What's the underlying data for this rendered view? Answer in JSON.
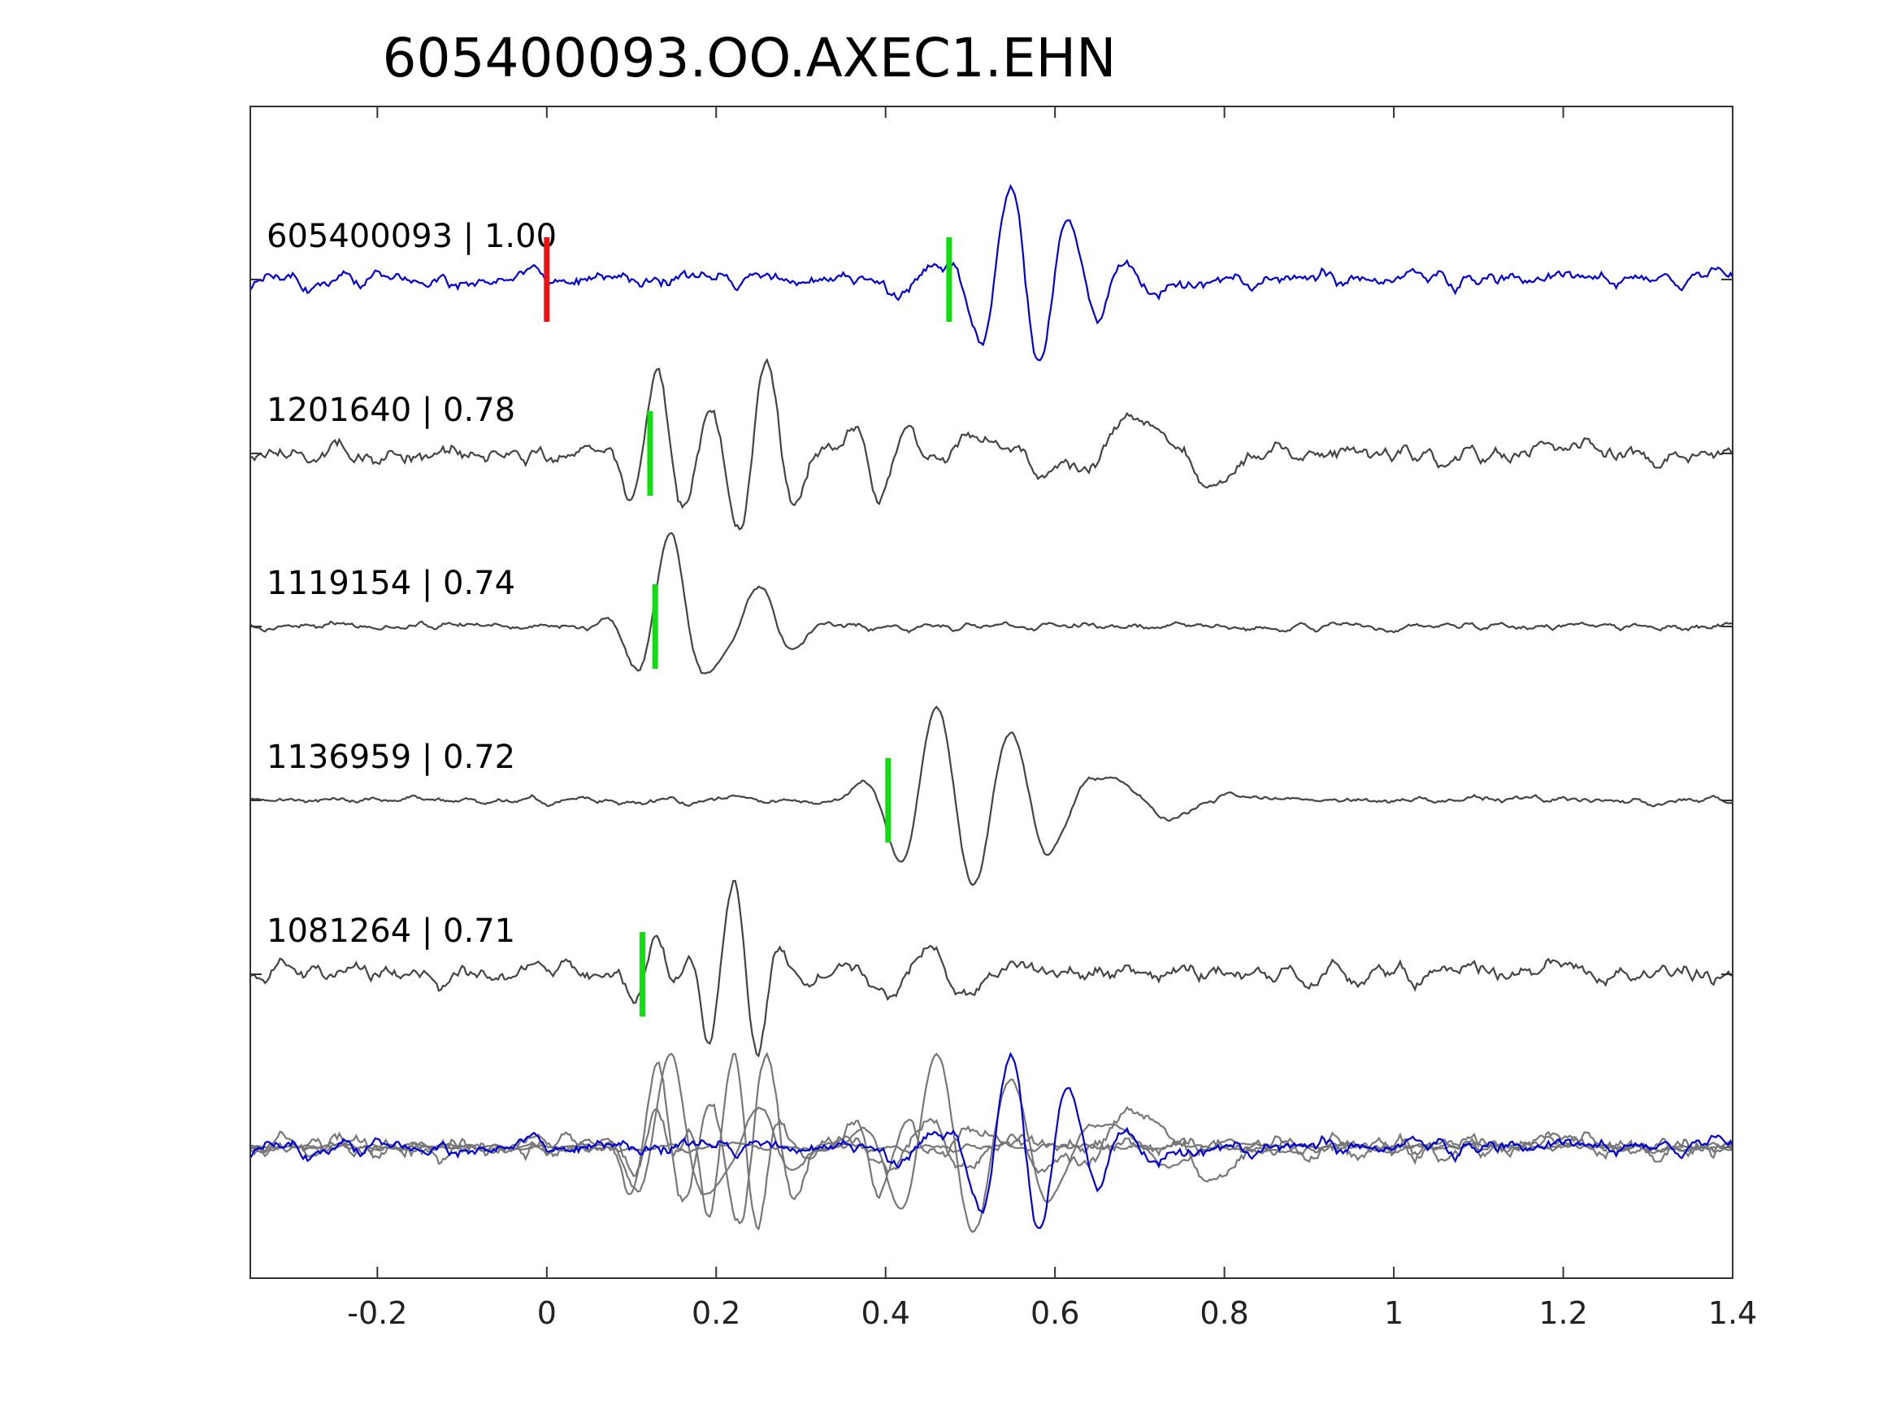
{
  "chart_data": {
    "type": "line",
    "title": "605400093.OO.AXEC1.EHN",
    "xlabel": "",
    "ylabel": "",
    "xlim": [
      -0.35,
      1.4
    ],
    "xticks": [
      -0.2,
      0,
      0.2,
      0.4,
      0.6,
      0.8,
      1,
      1.2,
      1.4
    ],
    "xtick_labels": [
      "-0.2",
      "0",
      "0.2",
      "0.4",
      "0.6",
      "0.8",
      "1",
      "1.2",
      "1.4"
    ],
    "grid": false,
    "traces": [
      {
        "label": "605400093 | 1.00",
        "color": "#0000dd",
        "pick_red": 0.0,
        "pick_green": 0.475,
        "noise": 0.12,
        "wavelets": [
          [
            0.55,
            1.0,
            0.075,
            0.048
          ],
          [
            0.61,
            0.45,
            0.075,
            0.06
          ],
          [
            0.45,
            0.25,
            0.075,
            0.05
          ]
        ]
      },
      {
        "label": "1201640 | 0.78",
        "color": "#444444",
        "pick_green": 0.122,
        "noise": 0.12,
        "wavelets": [
          [
            0.13,
            0.85,
            0.068,
            0.03
          ],
          [
            0.26,
            1.0,
            0.068,
            0.05
          ],
          [
            0.36,
            0.45,
            0.068,
            0.06
          ],
          [
            0.7,
            0.35,
            0.2,
            0.09
          ]
        ]
      },
      {
        "label": "1119154 | 0.74",
        "color": "#444444",
        "pick_green": 0.128,
        "noise": 0.05,
        "wavelets": [
          [
            0.145,
            1.0,
            0.09,
            0.035
          ],
          [
            0.25,
            0.45,
            0.09,
            0.04
          ]
        ]
      },
      {
        "label": "1136959 | 0.72",
        "color": "#444444",
        "pick_green": 0.403,
        "noise": 0.05,
        "wavelets": [
          [
            0.46,
            1.0,
            0.09,
            0.05
          ],
          [
            0.55,
            0.6,
            0.09,
            0.05
          ],
          [
            0.67,
            0.3,
            0.15,
            0.08
          ]
        ]
      },
      {
        "label": "1081264 | 0.71",
        "color": "#444444",
        "pick_green": 0.113,
        "noise": 0.12,
        "wavelets": [
          [
            0.22,
            1.0,
            0.06,
            0.04
          ],
          [
            0.13,
            0.5,
            0.06,
            0.03
          ],
          [
            0.45,
            0.3,
            0.1,
            0.06
          ]
        ]
      }
    ],
    "overlay": {
      "stack_color": "#777777",
      "main_color": "#0000dd"
    }
  }
}
